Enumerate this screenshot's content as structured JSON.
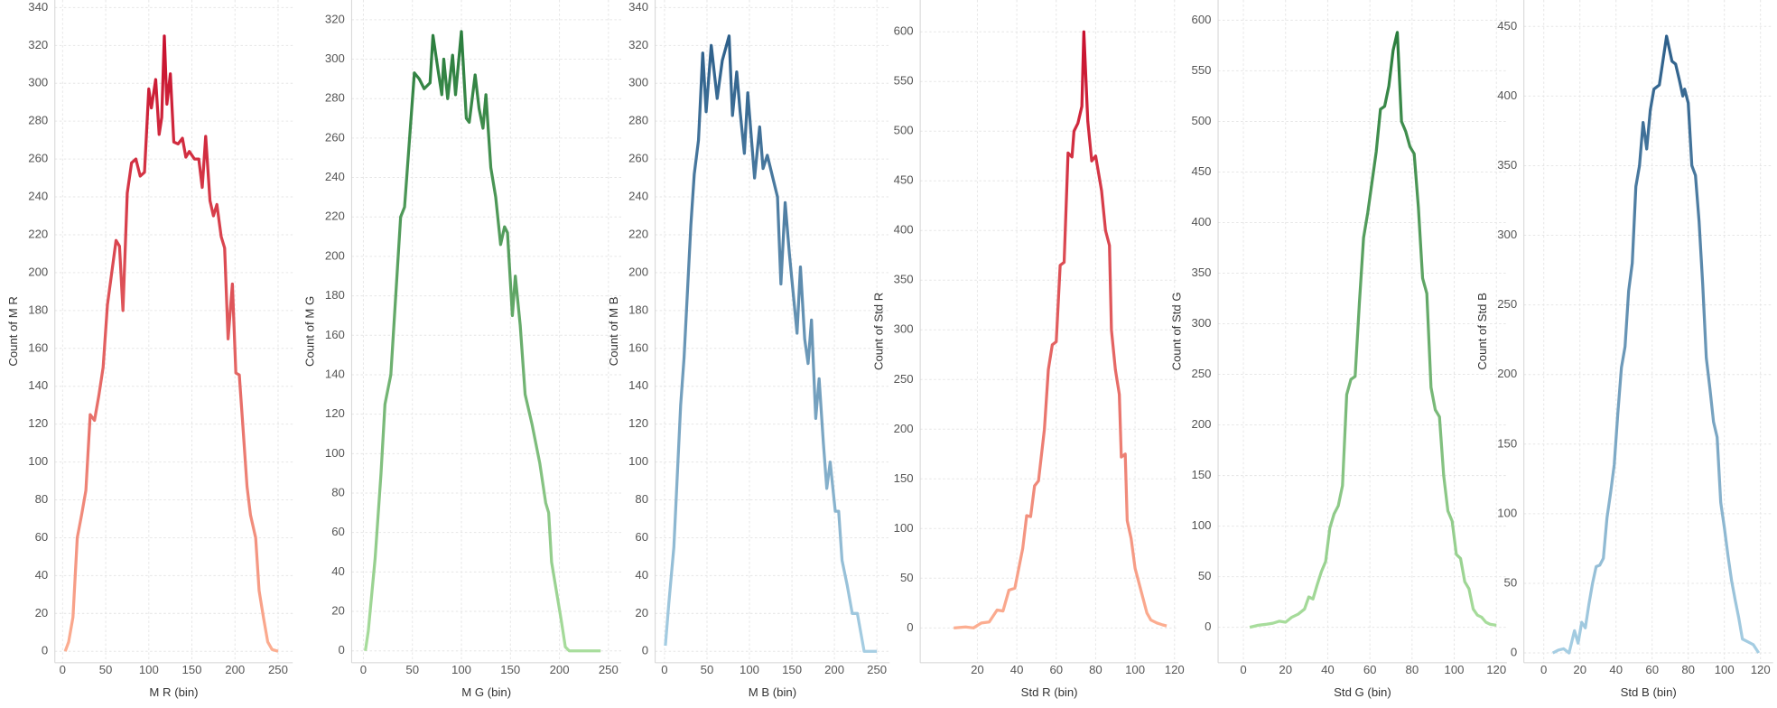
{
  "chart_data": [
    {
      "type": "line",
      "x_label": "M R (bin)",
      "y_label": "Count of M R",
      "colors": [
        "#fcae91",
        "#c8102e"
      ],
      "x": [
        3,
        7,
        12,
        17,
        22,
        27,
        32,
        37,
        42,
        47,
        52,
        57,
        62,
        66,
        70,
        75,
        80,
        85,
        90,
        95,
        100,
        103,
        108,
        112,
        115,
        118,
        121,
        125,
        129,
        134,
        139,
        143,
        147,
        153,
        158,
        162,
        166,
        171,
        175,
        179,
        184,
        188,
        192,
        197,
        201,
        205,
        209,
        214,
        218,
        224,
        228,
        233,
        238,
        243,
        250
      ],
      "values": [
        0,
        5,
        18,
        60,
        72,
        85,
        125,
        122,
        135,
        150,
        183,
        200,
        217,
        214,
        180,
        242,
        258,
        260,
        251,
        253,
        297,
        287,
        302,
        273,
        282,
        325,
        289,
        305,
        269,
        268,
        271,
        261,
        264,
        260,
        260,
        245,
        272,
        238,
        230,
        236,
        219,
        213,
        165,
        194,
        147,
        146,
        120,
        87,
        72,
        60,
        32,
        18,
        5,
        1,
        0
      ],
      "xlim": [
        -9,
        267
      ],
      "xticks": [
        0,
        50,
        100,
        150,
        200,
        250
      ],
      "ylim": [
        -6,
        344
      ],
      "yticks": [
        0,
        20,
        40,
        60,
        80,
        100,
        120,
        140,
        160,
        180,
        200,
        220,
        240,
        260,
        280,
        300,
        320,
        340
      ]
    },
    {
      "type": "line",
      "x_label": "M G (bin)",
      "y_label": "Count of M G",
      "colors": [
        "#a8dd9c",
        "#2a7d3d"
      ],
      "x": [
        2,
        5,
        12,
        18,
        22,
        28,
        38,
        42,
        52,
        57,
        62,
        68,
        71,
        76,
        80,
        82,
        86,
        91,
        94,
        100,
        105,
        108,
        114,
        118,
        122,
        125,
        130,
        135,
        140,
        144,
        147,
        152,
        155,
        160,
        165,
        172,
        180,
        186,
        189,
        192,
        196,
        202,
        206,
        210,
        215,
        222,
        228,
        235,
        242
      ],
      "values": [
        0,
        10,
        47,
        90,
        125,
        140,
        220,
        225,
        293,
        290,
        285,
        288,
        312,
        295,
        282,
        300,
        280,
        302,
        282,
        314,
        270,
        268,
        292,
        275,
        265,
        282,
        245,
        230,
        206,
        215,
        212,
        170,
        190,
        165,
        130,
        115,
        95,
        75,
        70,
        45,
        33,
        15,
        2,
        0,
        0,
        0,
        0,
        0,
        0
      ],
      "xlim": [
        -12,
        263
      ],
      "xticks": [
        0,
        50,
        100,
        150,
        200,
        250
      ],
      "ylim": [
        -6,
        330
      ],
      "yticks": [
        0,
        20,
        40,
        60,
        80,
        100,
        120,
        140,
        160,
        180,
        200,
        220,
        240,
        260,
        280,
        300,
        320
      ]
    },
    {
      "type": "line",
      "x_label": "M B (bin)",
      "y_label": "Count of M B",
      "colors": [
        "#a6cee3",
        "#2d5f8a"
      ],
      "x": [
        1,
        5,
        11,
        19,
        23,
        31,
        35,
        40,
        45,
        49,
        55,
        62,
        68,
        76,
        80,
        85,
        89,
        94,
        98,
        106,
        112,
        116,
        121,
        133,
        137,
        142,
        147,
        156,
        160,
        165,
        169,
        173,
        178,
        182,
        187,
        191,
        195,
        201,
        205,
        209,
        215,
        221,
        227,
        235,
        242,
        250
      ],
      "values": [
        3,
        25,
        55,
        130,
        155,
        225,
        252,
        270,
        316,
        285,
        320,
        292,
        312,
        325,
        283,
        306,
        285,
        263,
        295,
        250,
        277,
        255,
        262,
        240,
        194,
        237,
        210,
        168,
        203,
        165,
        152,
        175,
        123,
        144,
        110,
        86,
        100,
        74,
        74,
        48,
        35,
        20,
        20,
        0,
        0,
        0
      ],
      "xlim": [
        -11,
        265
      ],
      "xticks": [
        0,
        50,
        100,
        150,
        200,
        250
      ],
      "ylim": [
        -6,
        344
      ],
      "yticks": [
        0,
        20,
        40,
        60,
        80,
        100,
        120,
        140,
        160,
        180,
        200,
        220,
        240,
        260,
        280,
        300,
        320,
        340
      ]
    },
    {
      "type": "line",
      "x_label": "Std R (bin)",
      "y_label": "Count of Std R",
      "colors": [
        "#fcae91",
        "#c8102e"
      ],
      "x": [
        8,
        14,
        18,
        22,
        26,
        30,
        33,
        36,
        39,
        43,
        45,
        47,
        49,
        51,
        54,
        56,
        58,
        60,
        62,
        64,
        66,
        68,
        69,
        71,
        73,
        74,
        76,
        78,
        80,
        83,
        85,
        87,
        88,
        90,
        92,
        93,
        95,
        96,
        98,
        100,
        102,
        104,
        106,
        108,
        111,
        114,
        116
      ],
      "values": [
        0,
        1,
        0,
        5,
        6,
        18,
        17,
        38,
        40,
        80,
        113,
        112,
        143,
        148,
        200,
        260,
        285,
        288,
        365,
        368,
        478,
        474,
        500,
        508,
        525,
        600,
        510,
        470,
        475,
        440,
        400,
        385,
        300,
        260,
        235,
        172,
        175,
        108,
        90,
        60,
        45,
        30,
        15,
        8,
        5,
        3,
        2
      ],
      "xlim": [
        -9,
        122
      ],
      "xticks": [
        20,
        40,
        60,
        80,
        100,
        120
      ],
      "ylim": [
        -35,
        632
      ],
      "yticks": [
        0,
        50,
        100,
        150,
        200,
        250,
        300,
        350,
        400,
        450,
        500,
        550,
        600
      ]
    },
    {
      "type": "line",
      "x_label": "Std G (bin)",
      "y_label": "Count of Std G",
      "colors": [
        "#a8dd9c",
        "#2a7d3d"
      ],
      "x": [
        3,
        7,
        11,
        14,
        17,
        20,
        23,
        26,
        29,
        31,
        33,
        35,
        37,
        39,
        41,
        43,
        45,
        47,
        49,
        51,
        53,
        55,
        57,
        59,
        61,
        63,
        65,
        67,
        69,
        71,
        73,
        75,
        77,
        79,
        81,
        83,
        85,
        87,
        89,
        91,
        93,
        95,
        97,
        99,
        101,
        103,
        105,
        107,
        109,
        111,
        113,
        115,
        117,
        120
      ],
      "values": [
        0,
        2,
        3,
        4,
        6,
        5,
        10,
        13,
        18,
        30,
        28,
        42,
        55,
        65,
        98,
        112,
        120,
        140,
        230,
        245,
        248,
        320,
        385,
        410,
        440,
        470,
        512,
        515,
        535,
        570,
        588,
        500,
        490,
        475,
        468,
        415,
        345,
        330,
        237,
        215,
        208,
        150,
        115,
        105,
        72,
        68,
        45,
        38,
        18,
        12,
        10,
        5,
        3,
        2
      ],
      "xlim": [
        -12,
        125
      ],
      "xticks": [
        0,
        20,
        40,
        60,
        80,
        100,
        120
      ],
      "ylim": [
        -35,
        620
      ],
      "yticks": [
        0,
        50,
        100,
        150,
        200,
        250,
        300,
        350,
        400,
        450,
        500,
        550,
        600
      ]
    },
    {
      "type": "line",
      "x_label": "Std B (bin)",
      "y_label": "Count of Std B",
      "colors": [
        "#a6cee3",
        "#2d5f8a"
      ],
      "x": [
        5,
        8,
        11,
        14,
        17,
        19,
        21,
        23,
        25,
        27,
        29,
        31,
        33,
        35,
        37,
        39,
        41,
        43,
        45,
        47,
        49,
        51,
        53,
        55,
        57,
        59,
        61,
        64,
        68,
        71,
        73,
        75,
        77,
        78,
        80,
        82,
        84,
        86,
        88,
        90,
        92,
        94,
        96,
        98,
        100,
        102,
        104,
        106,
        108,
        110,
        113,
        116,
        119
      ],
      "values": [
        0,
        2,
        3,
        0,
        16,
        7,
        22,
        18,
        35,
        50,
        62,
        63,
        68,
        97,
        115,
        135,
        172,
        205,
        220,
        260,
        280,
        335,
        350,
        381,
        362,
        390,
        405,
        408,
        443,
        425,
        423,
        412,
        400,
        405,
        395,
        350,
        343,
        310,
        265,
        212,
        190,
        166,
        155,
        108,
        90,
        70,
        52,
        38,
        25,
        10,
        8,
        6,
        0
      ],
      "xlim": [
        -11,
        127
      ],
      "xticks": [
        0,
        20,
        40,
        60,
        80,
        100,
        120
      ],
      "ylim": [
        -7,
        469
      ],
      "yticks": [
        0,
        50,
        100,
        150,
        200,
        250,
        300,
        350,
        400,
        450
      ]
    }
  ]
}
